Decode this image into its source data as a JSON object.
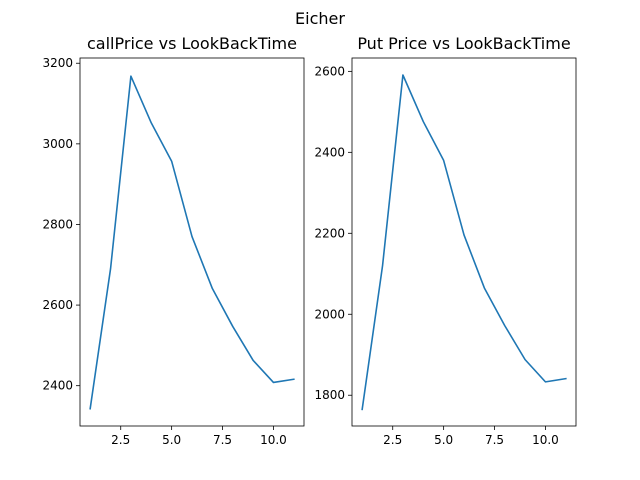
{
  "figure": {
    "suptitle": "Eicher"
  },
  "colors": {
    "line": "#1f77b4"
  },
  "chart_data": [
    {
      "type": "line",
      "title": "callPrice vs LookBackTime",
      "xlabel": "",
      "ylabel": "",
      "x": [
        1,
        2,
        3,
        4,
        5,
        6,
        7,
        8,
        9,
        10,
        11
      ],
      "series": [
        {
          "values": [
            2343,
            2690,
            3168,
            3052,
            2957,
            2770,
            2641,
            2547,
            2463,
            2408,
            2416
          ]
        }
      ],
      "xlim": [
        0.5,
        11.5
      ],
      "ylim": [
        2300,
        3213
      ],
      "xticks": [
        2.5,
        5.0,
        7.5,
        10.0
      ],
      "xtick_labels": [
        "2.5",
        "5.0",
        "7.5",
        "10.0"
      ],
      "yticks": [
        2400,
        2600,
        2800,
        3000,
        3200
      ],
      "ytick_labels": [
        "2400",
        "2600",
        "2800",
        "3000",
        "3200"
      ],
      "grid": false
    },
    {
      "type": "line",
      "title": "Put Price vs LookBackTime",
      "xlabel": "",
      "ylabel": "",
      "x": [
        1,
        2,
        3,
        4,
        5,
        6,
        7,
        8,
        9,
        10,
        11
      ],
      "series": [
        {
          "values": [
            1765,
            2120,
            2591,
            2476,
            2380,
            2196,
            2065,
            1972,
            1888,
            1833,
            1841
          ]
        }
      ],
      "xlim": [
        0.5,
        11.5
      ],
      "ylim": [
        1724,
        2633
      ],
      "xticks": [
        2.5,
        5.0,
        7.5,
        10.0
      ],
      "xtick_labels": [
        "2.5",
        "5.0",
        "7.5",
        "10.0"
      ],
      "yticks": [
        1800,
        2000,
        2200,
        2400,
        2600
      ],
      "ytick_labels": [
        "1800",
        "2000",
        "2200",
        "2400",
        "2600"
      ],
      "grid": false
    }
  ]
}
